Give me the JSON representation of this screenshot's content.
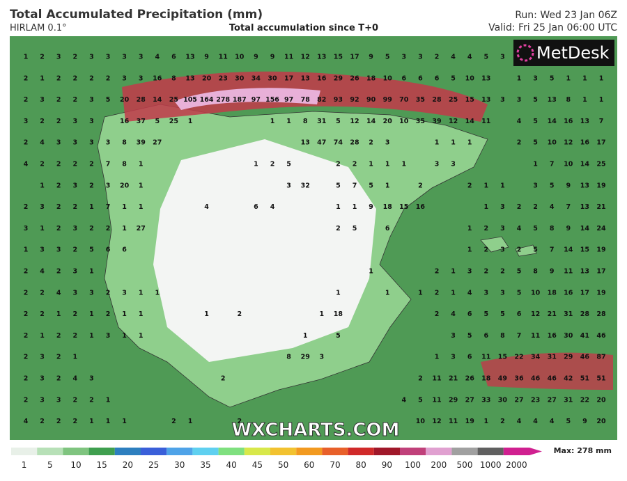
{
  "header": {
    "title": "Total Accumulated Precipitation (mm)",
    "model": "HIRLAM 0.1°",
    "subtitle": "Total accumulation since T+0",
    "run": "Run: Wed 23 Jan 06Z",
    "valid": "Valid: Fri 25 Jan 06:00 UTC"
  },
  "logo": "MetDesk",
  "watermark": "WXCHARTS.COM",
  "max_label": "Max: 278 mm",
  "scale": {
    "values": [
      1,
      5,
      10,
      15,
      20,
      25,
      30,
      35,
      40,
      45,
      50,
      60,
      70,
      80,
      90,
      100,
      200,
      500,
      1000,
      2000
    ],
    "colors": [
      "#e8f0e8",
      "#b7e0b7",
      "#7fc47f",
      "#3f9f4f",
      "#2d7fbf",
      "#3a5fd9",
      "#4fa3e8",
      "#5fd0f0",
      "#7fe07f",
      "#d8e84a",
      "#f2c230",
      "#f29a20",
      "#e8602a",
      "#d02a2a",
      "#a0182a",
      "#c0407a",
      "#e0a0d0",
      "#a0a0a0",
      "#606060",
      "#d02090"
    ]
  },
  "grid": [
    [
      1,
      2,
      3,
      2,
      3,
      3,
      3,
      3,
      4,
      6,
      13,
      9,
      11,
      10,
      9,
      9,
      11,
      12,
      13,
      15,
      17,
      9,
      5,
      3,
      3,
      2,
      4,
      4,
      5,
      3,
      null,
      null,
      null,
      null,
      null,
      null
    ],
    [
      2,
      1,
      2,
      2,
      2,
      2,
      3,
      3,
      16,
      8,
      13,
      20,
      23,
      30,
      34,
      30,
      17,
      13,
      16,
      29,
      26,
      18,
      10,
      6,
      6,
      6,
      5,
      10,
      13,
      null,
      1,
      3,
      5,
      1,
      1,
      1
    ],
    [
      2,
      3,
      2,
      2,
      3,
      5,
      20,
      28,
      14,
      25,
      105,
      164,
      278,
      187,
      97,
      156,
      97,
      78,
      82,
      93,
      92,
      90,
      99,
      70,
      35,
      28,
      25,
      15,
      13,
      3,
      3,
      5,
      13,
      8,
      1,
      1
    ],
    [
      3,
      2,
      2,
      3,
      3,
      null,
      16,
      37,
      5,
      25,
      1,
      null,
      null,
      null,
      null,
      1,
      1,
      8,
      31,
      5,
      12,
      14,
      20,
      10,
      35,
      39,
      12,
      14,
      11,
      null,
      4,
      5,
      14,
      16,
      13,
      7
    ],
    [
      2,
      4,
      3,
      3,
      3,
      3,
      8,
      39,
      27,
      null,
      null,
      null,
      null,
      null,
      null,
      null,
      null,
      13,
      47,
      74,
      28,
      2,
      3,
      null,
      null,
      1,
      1,
      1,
      null,
      null,
      2,
      5,
      10,
      12,
      16,
      17
    ],
    [
      4,
      2,
      2,
      2,
      2,
      7,
      8,
      1,
      null,
      null,
      null,
      null,
      null,
      null,
      1,
      2,
      5,
      null,
      null,
      2,
      2,
      1,
      1,
      1,
      null,
      3,
      3,
      null,
      null,
      null,
      null,
      1,
      7,
      10,
      14,
      25
    ],
    [
      null,
      1,
      2,
      3,
      2,
      3,
      20,
      1,
      null,
      null,
      null,
      null,
      null,
      null,
      null,
      null,
      3,
      32,
      null,
      5,
      7,
      5,
      1,
      null,
      2,
      null,
      null,
      2,
      1,
      1,
      null,
      3,
      5,
      9,
      13,
      19
    ],
    [
      2,
      3,
      2,
      2,
      1,
      7,
      1,
      1,
      null,
      null,
      null,
      4,
      null,
      null,
      6,
      4,
      null,
      null,
      null,
      1,
      1,
      9,
      18,
      15,
      16,
      null,
      null,
      null,
      1,
      3,
      2,
      2,
      4,
      7,
      13,
      21
    ],
    [
      3,
      1,
      2,
      3,
      2,
      2,
      1,
      27,
      null,
      null,
      null,
      null,
      null,
      null,
      null,
      null,
      null,
      null,
      null,
      2,
      5,
      null,
      6,
      null,
      null,
      null,
      null,
      1,
      2,
      3,
      4,
      5,
      8,
      9,
      14,
      24
    ],
    [
      1,
      3,
      3,
      2,
      5,
      6,
      6,
      null,
      null,
      null,
      null,
      null,
      null,
      null,
      null,
      null,
      null,
      null,
      null,
      null,
      null,
      null,
      null,
      null,
      null,
      null,
      null,
      1,
      2,
      3,
      2,
      5,
      7,
      14,
      15,
      19
    ],
    [
      2,
      4,
      2,
      3,
      1,
      null,
      null,
      null,
      null,
      null,
      null,
      null,
      null,
      null,
      null,
      null,
      null,
      null,
      null,
      null,
      null,
      1,
      null,
      null,
      null,
      2,
      1,
      3,
      2,
      2,
      5,
      8,
      9,
      11,
      13,
      17
    ],
    [
      2,
      2,
      4,
      3,
      3,
      2,
      3,
      1,
      1,
      null,
      null,
      null,
      null,
      null,
      null,
      null,
      null,
      null,
      null,
      1,
      null,
      null,
      1,
      null,
      1,
      2,
      1,
      4,
      3,
      3,
      5,
      10,
      18,
      16,
      17,
      19
    ],
    [
      2,
      2,
      1,
      2,
      1,
      2,
      1,
      1,
      null,
      null,
      null,
      1,
      null,
      2,
      null,
      null,
      null,
      null,
      1,
      18,
      null,
      null,
      null,
      null,
      null,
      2,
      4,
      6,
      5,
      5,
      6,
      12,
      21,
      31,
      28,
      28
    ],
    [
      2,
      1,
      2,
      2,
      1,
      3,
      1,
      1,
      null,
      null,
      null,
      null,
      null,
      null,
      null,
      null,
      null,
      1,
      null,
      5,
      null,
      null,
      null,
      null,
      null,
      null,
      3,
      5,
      6,
      8,
      7,
      11,
      16,
      30,
      41,
      46
    ],
    [
      2,
      3,
      2,
      1,
      null,
      null,
      null,
      null,
      null,
      null,
      null,
      null,
      null,
      null,
      null,
      null,
      8,
      29,
      3,
      null,
      null,
      null,
      null,
      null,
      null,
      1,
      3,
      6,
      11,
      15,
      22,
      34,
      31,
      29,
      46,
      87
    ],
    [
      2,
      3,
      2,
      4,
      3,
      null,
      null,
      null,
      null,
      null,
      null,
      null,
      2,
      null,
      null,
      null,
      null,
      null,
      null,
      null,
      null,
      null,
      null,
      null,
      2,
      11,
      21,
      26,
      18,
      49,
      36,
      46,
      46,
      42,
      51,
      51
    ],
    [
      2,
      3,
      3,
      2,
      2,
      1,
      null,
      null,
      null,
      null,
      null,
      null,
      null,
      null,
      null,
      null,
      null,
      null,
      null,
      null,
      null,
      null,
      null,
      4,
      5,
      11,
      29,
      27,
      33,
      30,
      27,
      23,
      27,
      31,
      22,
      20
    ],
    [
      4,
      2,
      2,
      2,
      1,
      1,
      1,
      null,
      null,
      2,
      1,
      null,
      null,
      2,
      null,
      null,
      null,
      null,
      null,
      null,
      null,
      null,
      null,
      null,
      10,
      12,
      11,
      19,
      1,
      2,
      4,
      4,
      4,
      5,
      9,
      20
    ]
  ]
}
